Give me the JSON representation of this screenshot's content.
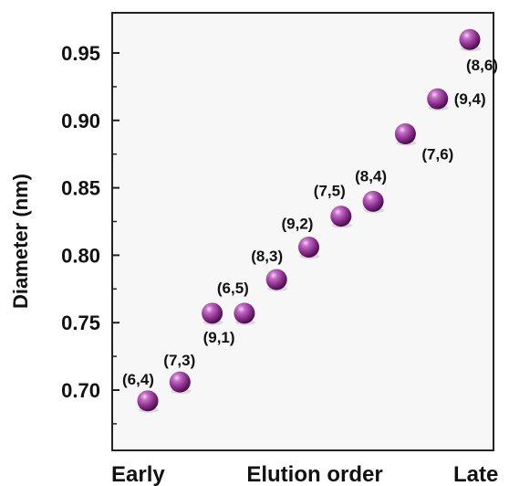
{
  "chart_data": {
    "type": "scatter",
    "ylabel": "Diameter (nm)",
    "xlabel": "Elution order",
    "x_end_labels": [
      "Early",
      "Late"
    ],
    "ylim": [
      0.67,
      0.97
    ],
    "y_ticks": [
      "0.70",
      "0.75",
      "0.80",
      "0.85",
      "0.90",
      "0.95"
    ],
    "grid": false,
    "legend": "none",
    "marker_color": "#8a2f8c",
    "points": [
      {
        "order": 1,
        "diameter": 0.692,
        "label": "(6,4)"
      },
      {
        "order": 2,
        "diameter": 0.706,
        "label": "(7,3)"
      },
      {
        "order": 3,
        "diameter": 0.757,
        "label": "(9,1)"
      },
      {
        "order": 4,
        "diameter": 0.757,
        "label": "(6,5)"
      },
      {
        "order": 5,
        "diameter": 0.782,
        "label": "(8,3)"
      },
      {
        "order": 6,
        "diameter": 0.806,
        "label": "(9,2)"
      },
      {
        "order": 7,
        "diameter": 0.829,
        "label": "(7,5)"
      },
      {
        "order": 8,
        "diameter": 0.84,
        "label": "(8,4)"
      },
      {
        "order": 9,
        "diameter": 0.89,
        "label": "(7,6)"
      },
      {
        "order": 10,
        "diameter": 0.916,
        "label": "(9,4)"
      },
      {
        "order": 11,
        "diameter": 0.96,
        "label": "(8,6)"
      }
    ]
  }
}
